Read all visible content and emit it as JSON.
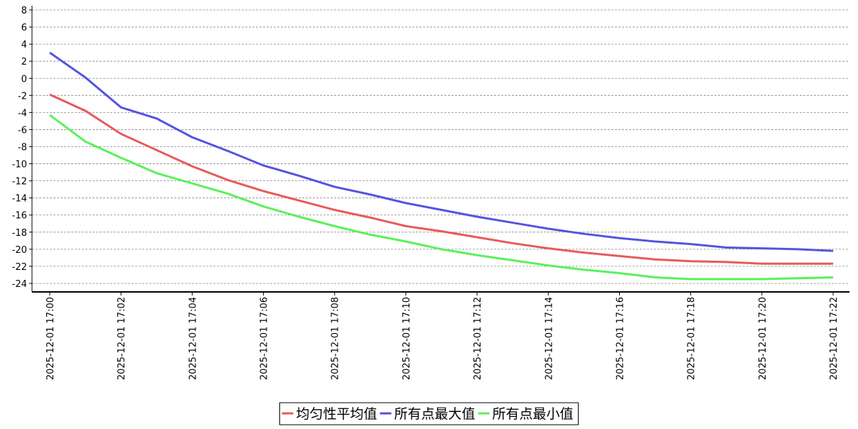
{
  "chart_data": {
    "type": "line",
    "categories": [
      "2025-12-01 17:00",
      null,
      "2025-12-01 17:02",
      null,
      "2025-12-01 17:04",
      null,
      "2025-12-01 17:06",
      null,
      "2025-12-01 17:08",
      null,
      "2025-12-01 17:10",
      null,
      "2025-12-01 17:12",
      null,
      "2025-12-01 17:14",
      null,
      "2025-12-01 17:16",
      null,
      "2025-12-01 17:18",
      null,
      "2025-12-01 17:20",
      null,
      "2025-12-01 17:22"
    ],
    "series": [
      {
        "name": "均匀性平均值",
        "color": "#e85a5a",
        "values": [
          -1.9,
          -3.8,
          -6.5,
          -8.4,
          -10.3,
          -11.9,
          -13.2,
          -14.3,
          -15.4,
          -16.3,
          -17.3,
          -17.9,
          -18.6,
          -19.3,
          -19.9,
          -20.4,
          -20.8,
          -21.2,
          -21.4,
          -21.5,
          -21.7,
          -21.7,
          -21.7
        ]
      },
      {
        "name": "所有点最大值",
        "color": "#5454e0",
        "values": [
          3.0,
          0.1,
          -3.4,
          -4.7,
          -6.9,
          -8.5,
          -10.2,
          -11.4,
          -12.7,
          -13.6,
          -14.6,
          -15.4,
          -16.2,
          -16.9,
          -17.6,
          -18.2,
          -18.7,
          -19.1,
          -19.4,
          -19.8,
          -19.9,
          -20.0,
          -20.2
        ]
      },
      {
        "name": "所有点最小值",
        "color": "#5cf05c",
        "values": [
          -4.3,
          -7.4,
          -9.3,
          -11.1,
          -12.3,
          -13.5,
          -15.0,
          -16.2,
          -17.3,
          -18.3,
          -19.1,
          -20.0,
          -20.7,
          -21.3,
          -21.9,
          -22.4,
          -22.8,
          -23.3,
          -23.5,
          -23.5,
          -23.5,
          -23.4,
          -23.3
        ]
      }
    ],
    "ylim": [
      -25,
      8.5
    ],
    "yticks": [
      -24,
      -22,
      -20,
      -18,
      -16,
      -14,
      -12,
      -10,
      -8,
      -6,
      -4,
      -2,
      0,
      2,
      4,
      6,
      8
    ],
    "grid": true,
    "legend": "bottom"
  }
}
